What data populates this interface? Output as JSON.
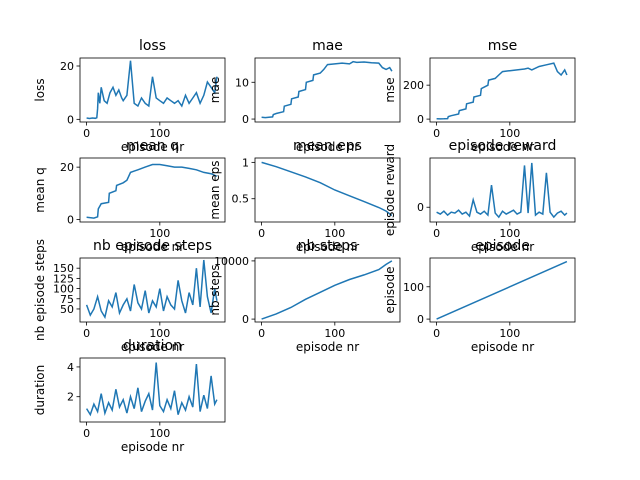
{
  "chart_data": [
    {
      "type": "line",
      "title": "loss",
      "ylabel": "loss",
      "xlabel": "episode nr",
      "xlim": [
        -9,
        189
      ],
      "ylim": [
        -1,
        23
      ],
      "xticks": [
        0,
        100
      ],
      "yticks": [
        0,
        20
      ],
      "color": "#1f77b4",
      "series": [
        {
          "x": [
            0,
            4,
            8,
            12,
            14,
            15,
            16,
            18,
            20,
            24,
            28,
            32,
            36,
            40,
            44,
            48,
            50,
            55,
            60,
            65,
            70,
            75,
            80,
            85,
            90,
            95,
            100,
            105,
            110,
            115,
            120,
            125,
            130,
            135,
            140,
            145,
            150,
            155,
            160,
            165,
            170,
            175,
            178
          ],
          "y": [
            0.5,
            0.3,
            0.5,
            0.4,
            0.6,
            4,
            10,
            6,
            12,
            7,
            6,
            10,
            12,
            9,
            11,
            8,
            7,
            9,
            22,
            6,
            5,
            8,
            6,
            5,
            16,
            8,
            7,
            6,
            8,
            7,
            6,
            7,
            5,
            9,
            6,
            8,
            10,
            6,
            9,
            14,
            12,
            10,
            16
          ]
        }
      ]
    },
    {
      "type": "line",
      "title": "mae",
      "ylabel": "mae",
      "xlabel": "episode nr",
      "xlim": [
        -9,
        189
      ],
      "ylim": [
        -0.8,
        16.6
      ],
      "xticks": [],
      "yticks": [
        0,
        10
      ],
      "color": "#1f77b4",
      "series": [
        {
          "x": [
            0,
            5,
            10,
            15,
            16,
            20,
            30,
            31,
            40,
            41,
            50,
            51,
            60,
            61,
            70,
            71,
            80,
            85,
            90,
            100,
            110,
            120,
            125,
            130,
            140,
            150,
            160,
            165,
            170,
            175,
            178
          ],
          "y": [
            0.5,
            0.4,
            0.5,
            0.6,
            1.2,
            1.5,
            2,
            3.5,
            4,
            5.5,
            6,
            7.5,
            8,
            10,
            10.5,
            12,
            12.5,
            13.5,
            14.8,
            15,
            15.2,
            15,
            15.6,
            15.4,
            15.5,
            15.3,
            15.2,
            14,
            13.5,
            14,
            13
          ]
        }
      ]
    },
    {
      "type": "line",
      "title": "mse",
      "ylabel": "mse",
      "xlabel": "episode nr",
      "xlim": [
        -9,
        189
      ],
      "ylim": [
        -17,
        360
      ],
      "xticks": [
        0,
        100
      ],
      "yticks": [
        0,
        200
      ],
      "color": "#1f77b4",
      "series": [
        {
          "x": [
            0,
            5,
            10,
            15,
            16,
            20,
            30,
            31,
            40,
            41,
            50,
            51,
            60,
            61,
            70,
            71,
            80,
            85,
            90,
            100,
            110,
            120,
            125,
            130,
            140,
            150,
            160,
            165,
            170,
            175,
            178
          ],
          "y": [
            2,
            1,
            2,
            3,
            15,
            20,
            30,
            50,
            60,
            90,
            100,
            130,
            140,
            180,
            200,
            230,
            240,
            260,
            280,
            285,
            290,
            295,
            300,
            290,
            310,
            320,
            330,
            280,
            260,
            290,
            260
          ]
        }
      ]
    },
    {
      "type": "line",
      "title": "mean q",
      "ylabel": "mean q",
      "xlabel": "episode nr",
      "xlim": [
        -9,
        189
      ],
      "ylim": [
        -1,
        23.5
      ],
      "xticks": [
        100
      ],
      "yticks": [
        0,
        20
      ],
      "color": "#1f77b4",
      "series": [
        {
          "x": [
            0,
            10,
            15,
            16,
            20,
            30,
            31,
            40,
            41,
            50,
            55,
            60,
            65,
            70,
            80,
            90,
            100,
            110,
            120,
            130,
            140,
            150,
            160,
            170,
            178
          ],
          "y": [
            0.8,
            0.5,
            1,
            4,
            6,
            6.5,
            10,
            11,
            13,
            14,
            15,
            18,
            18.5,
            19,
            20,
            21,
            21,
            20.5,
            20,
            20,
            19.5,
            19,
            18,
            17.5,
            16.5
          ]
        }
      ]
    },
    {
      "type": "line",
      "title": "mean eps",
      "ylabel": "mean eps",
      "xlabel": "episode nr",
      "xlim": [
        -9,
        189
      ],
      "ylim": [
        0.18,
        1.06
      ],
      "xticks": [
        0,
        100
      ],
      "yticks": [
        0.5,
        1.0
      ],
      "color": "#1f77b4",
      "series": [
        {
          "x": [
            0,
            20,
            40,
            60,
            80,
            100,
            120,
            140,
            160,
            170,
            178
          ],
          "y": [
            1.0,
            0.94,
            0.87,
            0.8,
            0.72,
            0.62,
            0.54,
            0.46,
            0.38,
            0.33,
            0.27
          ]
        }
      ]
    },
    {
      "type": "line",
      "title": "episode reward",
      "ylabel": "episode reward",
      "xlabel": "episode nr",
      "xlim": [
        -9,
        189
      ],
      "ylim": [
        -30,
        100
      ],
      "xticks": [
        0,
        100
      ],
      "yticks": [
        0
      ],
      "color": "#1f77b4",
      "series": [
        {
          "x": [
            0,
            5,
            10,
            15,
            20,
            25,
            30,
            35,
            40,
            45,
            50,
            55,
            60,
            65,
            70,
            75,
            80,
            85,
            90,
            95,
            100,
            105,
            110,
            115,
            120,
            125,
            130,
            135,
            140,
            145,
            150,
            155,
            160,
            165,
            170,
            175,
            178
          ],
          "y": [
            -10,
            -14,
            -8,
            -16,
            -10,
            -12,
            -6,
            -14,
            -10,
            -18,
            15,
            -10,
            -14,
            -8,
            -16,
            45,
            -12,
            -20,
            -8,
            -14,
            -10,
            -6,
            -14,
            -10,
            85,
            -12,
            90,
            -16,
            -10,
            -14,
            70,
            -10,
            -20,
            -12,
            -8,
            -16,
            -12
          ]
        }
      ]
    },
    {
      "type": "line",
      "title": "nb episode steps",
      "ylabel": "nb episode steps",
      "xlabel": "episode nr",
      "xlim": [
        -9,
        189
      ],
      "ylim": [
        18,
        175
      ],
      "xticks": [
        0,
        100
      ],
      "yticks": [
        50,
        75,
        100,
        125,
        150
      ],
      "color": "#1f77b4",
      "series": [
        {
          "x": [
            0,
            5,
            10,
            15,
            20,
            25,
            30,
            35,
            40,
            45,
            50,
            55,
            60,
            65,
            70,
            75,
            80,
            85,
            90,
            95,
            100,
            105,
            110,
            115,
            120,
            125,
            130,
            135,
            140,
            145,
            150,
            155,
            160,
            165,
            170,
            175,
            178
          ],
          "y": [
            60,
            35,
            50,
            80,
            45,
            30,
            70,
            55,
            90,
            40,
            60,
            75,
            45,
            110,
            65,
            50,
            95,
            40,
            70,
            55,
            100,
            45,
            80,
            60,
            50,
            120,
            70,
            40,
            90,
            60,
            150,
            55,
            170,
            80,
            40,
            100,
            70
          ]
        }
      ]
    },
    {
      "type": "line",
      "title": "nb steps",
      "ylabel": "nb steps",
      "xlabel": "episode nr",
      "xlim": [
        -9,
        189
      ],
      "ylim": [
        -500,
        10500
      ],
      "xticks": [
        0,
        100
      ],
      "yticks": [
        0,
        10000
      ],
      "color": "#1f77b4",
      "series": [
        {
          "x": [
            0,
            20,
            40,
            60,
            80,
            100,
            120,
            140,
            160,
            170,
            178
          ],
          "y": [
            0,
            900,
            2000,
            3400,
            4600,
            5800,
            6800,
            7600,
            8500,
            9400,
            10000
          ]
        }
      ]
    },
    {
      "type": "line",
      "title": "episode",
      "ylabel": "episode",
      "xlabel": "episode nr",
      "xlim": [
        -9,
        189
      ],
      "ylim": [
        -9,
        189
      ],
      "xticks": [
        0,
        100
      ],
      "yticks": [
        0,
        100
      ],
      "color": "#1f77b4",
      "series": [
        {
          "x": [
            0,
            178
          ],
          "y": [
            0,
            178
          ]
        }
      ]
    },
    {
      "type": "line",
      "title": "duration",
      "ylabel": "duration",
      "xlabel": "episode nr",
      "xlim": [
        -9,
        189
      ],
      "ylim": [
        0.3,
        4.6
      ],
      "xticks": [
        0,
        100
      ],
      "yticks": [
        2,
        4
      ],
      "color": "#1f77b4",
      "series": [
        {
          "x": [
            0,
            5,
            10,
            15,
            20,
            25,
            30,
            35,
            40,
            45,
            50,
            55,
            60,
            65,
            70,
            75,
            80,
            85,
            90,
            95,
            100,
            105,
            110,
            115,
            120,
            125,
            130,
            135,
            140,
            145,
            150,
            155,
            160,
            165,
            170,
            175,
            178
          ],
          "y": [
            1.2,
            0.8,
            1.5,
            1.0,
            2.2,
            0.9,
            1.6,
            1.1,
            2.5,
            1.3,
            1.8,
            0.9,
            2.0,
            1.2,
            2.6,
            1.0,
            1.7,
            2.2,
            1.1,
            4.3,
            1.4,
            1.0,
            1.8,
            1.2,
            2.4,
            0.8,
            1.6,
            1.1,
            2.0,
            1.3,
            4.2,
            1.0,
            2.1,
            1.2,
            3.4,
            1.5,
            1.8
          ]
        }
      ]
    }
  ]
}
